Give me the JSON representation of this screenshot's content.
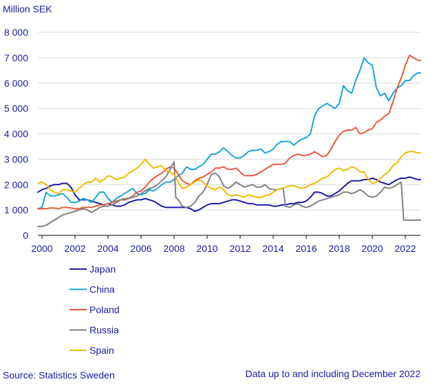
{
  "chart_data": {
    "type": "line",
    "title": "",
    "ylabel": "Million SEK",
    "xlabel": "",
    "ylim": [
      0,
      8000
    ],
    "xlim": [
      1999.75,
      2022.917
    ],
    "y_ticks": [
      0,
      1000,
      2000,
      3000,
      4000,
      5000,
      6000,
      7000,
      8000
    ],
    "y_tick_labels": [
      "0",
      "1 000",
      "2 000",
      "3 000",
      "4 000",
      "5 000",
      "6 000",
      "7 000",
      "8 000"
    ],
    "x_ticks": [
      2000,
      2002,
      2004,
      2006,
      2008,
      2010,
      2012,
      2014,
      2016,
      2018,
      2020,
      2022
    ],
    "x_tick_labels": [
      "2000",
      "2002",
      "2004",
      "2006",
      "2008",
      "2010",
      "2012",
      "2014",
      "2016",
      "2018",
      "2020",
      "2022"
    ],
    "grid": true,
    "legend_position": "bottom-left",
    "series": [
      {
        "name": "Japan",
        "color": "#1a1aa6",
        "x": [
          1999.75,
          2000.0,
          2000.25,
          2000.5,
          2000.75,
          2001.0,
          2001.25,
          2001.5,
          2001.75,
          2002.0,
          2002.25,
          2002.5,
          2002.75,
          2003.0,
          2003.25,
          2003.5,
          2003.75,
          2004.0,
          2004.25,
          2004.5,
          2004.75,
          2005.0,
          2005.25,
          2005.5,
          2005.75,
          2006.0,
          2006.25,
          2006.5,
          2006.75,
          2007.0,
          2007.25,
          2007.5,
          2007.75,
          2008.0,
          2008.25,
          2008.5,
          2008.75,
          2009.0,
          2009.25,
          2009.5,
          2009.75,
          2010.0,
          2010.25,
          2010.5,
          2010.75,
          2011.0,
          2011.25,
          2011.5,
          2011.75,
          2012.0,
          2012.25,
          2012.5,
          2012.75,
          2013.0,
          2013.25,
          2013.5,
          2013.75,
          2014.0,
          2014.25,
          2014.5,
          2014.75,
          2015.0,
          2015.25,
          2015.5,
          2015.75,
          2016.0,
          2016.25,
          2016.5,
          2016.75,
          2017.0,
          2017.25,
          2017.5,
          2017.75,
          2018.0,
          2018.25,
          2018.5,
          2018.75,
          2019.0,
          2019.25,
          2019.5,
          2019.75,
          2020.0,
          2020.25,
          2020.5,
          2020.75,
          2021.0,
          2021.25,
          2021.5,
          2021.75,
          2022.0,
          2022.25,
          2022.5,
          2022.75,
          2022.917
        ],
        "values": [
          1700,
          1800,
          1850,
          1950,
          2000,
          2000,
          2050,
          2050,
          1900,
          1600,
          1400,
          1400,
          1400,
          1350,
          1300,
          1250,
          1200,
          1250,
          1200,
          1150,
          1150,
          1200,
          1300,
          1350,
          1400,
          1400,
          1450,
          1400,
          1350,
          1250,
          1150,
          1100,
          1100,
          1100,
          1100,
          1100,
          1100,
          1050,
          950,
          1000,
          1100,
          1200,
          1250,
          1250,
          1250,
          1300,
          1350,
          1400,
          1400,
          1350,
          1300,
          1250,
          1250,
          1200,
          1200,
          1200,
          1200,
          1150,
          1150,
          1200,
          1200,
          1250,
          1250,
          1300,
          1300,
          1350,
          1500,
          1700,
          1700,
          1650,
          1550,
          1550,
          1650,
          1750,
          1900,
          2050,
          2150,
          2150,
          2150,
          2200,
          2200,
          2250,
          2200,
          2100,
          2050,
          2000,
          2100,
          2200,
          2250,
          2250,
          2300,
          2250,
          2200,
          2200
        ]
      },
      {
        "name": "China",
        "color": "#19a4dc",
        "x": [
          1999.75,
          2000.0,
          2000.25,
          2000.5,
          2000.75,
          2001.0,
          2001.25,
          2001.5,
          2001.75,
          2002.0,
          2002.25,
          2002.5,
          2002.75,
          2003.0,
          2003.25,
          2003.5,
          2003.75,
          2004.0,
          2004.25,
          2004.5,
          2004.75,
          2005.0,
          2005.25,
          2005.5,
          2005.75,
          2006.0,
          2006.25,
          2006.5,
          2006.75,
          2007.0,
          2007.25,
          2007.5,
          2007.75,
          2008.0,
          2008.25,
          2008.5,
          2008.75,
          2009.0,
          2009.25,
          2009.5,
          2009.75,
          2010.0,
          2010.25,
          2010.5,
          2010.75,
          2011.0,
          2011.25,
          2011.5,
          2011.75,
          2012.0,
          2012.25,
          2012.5,
          2012.75,
          2013.0,
          2013.25,
          2013.5,
          2013.75,
          2014.0,
          2014.25,
          2014.5,
          2014.75,
          2015.0,
          2015.25,
          2015.5,
          2015.75,
          2016.0,
          2016.25,
          2016.5,
          2016.75,
          2017.0,
          2017.25,
          2017.5,
          2017.75,
          2018.0,
          2018.25,
          2018.5,
          2018.75,
          2019.0,
          2019.25,
          2019.5,
          2019.75,
          2020.0,
          2020.25,
          2020.5,
          2020.75,
          2021.0,
          2021.25,
          2021.5,
          2021.75,
          2022.0,
          2022.25,
          2022.5,
          2022.75,
          2022.917
        ],
        "values": [
          1050,
          1100,
          1700,
          1550,
          1550,
          1600,
          1650,
          1500,
          1300,
          1300,
          1350,
          1450,
          1400,
          1300,
          1500,
          1700,
          1700,
          1450,
          1300,
          1450,
          1550,
          1650,
          1750,
          1850,
          1650,
          1600,
          1650,
          1800,
          1750,
          1850,
          2000,
          2100,
          2100,
          2200,
          2350,
          2450,
          2700,
          2600,
          2600,
          2700,
          2800,
          3000,
          3200,
          3200,
          3300,
          3450,
          3300,
          3150,
          3050,
          3050,
          3150,
          3300,
          3350,
          3350,
          3400,
          3250,
          3300,
          3400,
          3600,
          3700,
          3700,
          3700,
          3550,
          3700,
          3800,
          3850,
          4000,
          4700,
          5000,
          5100,
          5200,
          5100,
          5000,
          5200,
          5900,
          5700,
          5600,
          6100,
          6500,
          7000,
          6800,
          6700,
          5800,
          5500,
          5600,
          5300,
          5600,
          5800,
          5900,
          6100,
          6100,
          6300,
          6400,
          6400
        ]
      },
      {
        "name": "Poland",
        "color": "#e8583a",
        "x": [
          1999.75,
          2000.0,
          2000.25,
          2000.5,
          2000.75,
          2001.0,
          2001.25,
          2001.5,
          2001.75,
          2002.0,
          2002.25,
          2002.5,
          2002.75,
          2003.0,
          2003.25,
          2003.5,
          2003.75,
          2004.0,
          2004.25,
          2004.5,
          2004.75,
          2005.0,
          2005.25,
          2005.5,
          2005.75,
          2006.0,
          2006.25,
          2006.5,
          2006.75,
          2007.0,
          2007.25,
          2007.5,
          2007.75,
          2008.0,
          2008.25,
          2008.5,
          2008.75,
          2009.0,
          2009.25,
          2009.5,
          2009.75,
          2010.0,
          2010.25,
          2010.5,
          2010.75,
          2011.0,
          2011.25,
          2011.5,
          2011.75,
          2012.0,
          2012.25,
          2012.5,
          2012.75,
          2013.0,
          2013.25,
          2013.5,
          2013.75,
          2014.0,
          2014.25,
          2014.5,
          2014.75,
          2015.0,
          2015.25,
          2015.5,
          2015.75,
          2016.0,
          2016.25,
          2016.5,
          2016.75,
          2017.0,
          2017.25,
          2017.5,
          2017.75,
          2018.0,
          2018.25,
          2018.5,
          2018.75,
          2019.0,
          2019.25,
          2019.5,
          2019.75,
          2020.0,
          2020.25,
          2020.5,
          2020.75,
          2021.0,
          2021.25,
          2021.5,
          2021.75,
          2022.0,
          2022.25,
          2022.5,
          2022.75,
          2022.917
        ],
        "values": [
          1050,
          1050,
          1050,
          1080,
          1080,
          1050,
          1100,
          1100,
          1080,
          1050,
          1050,
          1100,
          1100,
          1100,
          1150,
          1200,
          1200,
          1250,
          1300,
          1350,
          1400,
          1400,
          1450,
          1550,
          1700,
          1750,
          1900,
          2100,
          2250,
          2350,
          2450,
          2600,
          2700,
          2650,
          2400,
          2150,
          2050,
          2000,
          2150,
          2250,
          2300,
          2400,
          2500,
          2650,
          2650,
          2700,
          2600,
          2600,
          2650,
          2500,
          2350,
          2350,
          2350,
          2400,
          2500,
          2600,
          2700,
          2800,
          2800,
          2800,
          2850,
          3050,
          3150,
          3200,
          3150,
          3150,
          3200,
          3300,
          3200,
          3100,
          3150,
          3400,
          3700,
          3950,
          4100,
          4150,
          4150,
          4250,
          4000,
          4050,
          4150,
          4200,
          4450,
          4550,
          4700,
          4800,
          5250,
          5800,
          6200,
          6700,
          7100,
          7000,
          6900,
          6900
        ]
      },
      {
        "name": "Russia",
        "color": "#808080",
        "x": [
          1999.75,
          2000.0,
          2000.25,
          2000.5,
          2000.75,
          2001.0,
          2001.25,
          2001.5,
          2001.75,
          2002.0,
          2002.25,
          2002.5,
          2002.75,
          2003.0,
          2003.25,
          2003.5,
          2003.75,
          2004.0,
          2004.25,
          2004.5,
          2004.75,
          2005.0,
          2005.25,
          2005.5,
          2005.75,
          2006.0,
          2006.25,
          2006.5,
          2006.75,
          2007.0,
          2007.25,
          2007.5,
          2007.75,
          2008.0,
          2008.1,
          2008.25,
          2008.5,
          2008.75,
          2009.0,
          2009.25,
          2009.5,
          2009.75,
          2010.0,
          2010.25,
          2010.5,
          2010.75,
          2011.0,
          2011.25,
          2011.5,
          2011.75,
          2012.0,
          2012.25,
          2012.5,
          2012.75,
          2013.0,
          2013.25,
          2013.5,
          2013.75,
          2014.0,
          2014.25,
          2014.5,
          2014.6,
          2014.75,
          2015.0,
          2015.25,
          2015.5,
          2015.75,
          2016.0,
          2016.25,
          2016.5,
          2016.75,
          2017.0,
          2017.25,
          2017.5,
          2017.75,
          2018.0,
          2018.25,
          2018.5,
          2018.75,
          2019.0,
          2019.25,
          2019.5,
          2019.75,
          2020.0,
          2020.25,
          2020.5,
          2020.75,
          2021.0,
          2021.25,
          2021.5,
          2021.75,
          2021.9,
          2022.0,
          2022.25,
          2022.5,
          2022.75,
          2022.917
        ],
        "values": [
          350,
          350,
          400,
          500,
          600,
          700,
          800,
          850,
          900,
          950,
          1000,
          1050,
          1000,
          900,
          1000,
          1100,
          1150,
          1150,
          1200,
          1300,
          1400,
          1450,
          1450,
          1500,
          1550,
          1650,
          1750,
          1850,
          1900,
          2000,
          2150,
          2300,
          2600,
          2900,
          1500,
          1400,
          1150,
          1100,
          1150,
          1300,
          1550,
          1700,
          2000,
          2400,
          2450,
          2300,
          1950,
          1850,
          1950,
          2100,
          2000,
          1900,
          1950,
          2000,
          1900,
          1900,
          2000,
          1850,
          1800,
          1800,
          1850,
          1850,
          1150,
          1100,
          1200,
          1250,
          1150,
          1100,
          1150,
          1250,
          1350,
          1400,
          1450,
          1500,
          1550,
          1600,
          1700,
          1700,
          1650,
          1700,
          1800,
          1700,
          1550,
          1500,
          1550,
          1700,
          1900,
          1850,
          1900,
          2000,
          2100,
          600,
          600,
          600,
          600,
          600,
          600
        ]
      },
      {
        "name": "Spain",
        "color": "#f2b900",
        "x": [
          1999.75,
          2000.0,
          2000.25,
          2000.5,
          2000.75,
          2001.0,
          2001.25,
          2001.5,
          2001.75,
          2002.0,
          2002.25,
          2002.5,
          2002.75,
          2003.0,
          2003.25,
          2003.5,
          2003.75,
          2004.0,
          2004.25,
          2004.5,
          2004.75,
          2005.0,
          2005.25,
          2005.5,
          2005.75,
          2006.0,
          2006.25,
          2006.5,
          2006.75,
          2007.0,
          2007.25,
          2007.5,
          2007.75,
          2008.0,
          2008.25,
          2008.5,
          2008.75,
          2009.0,
          2009.25,
          2009.5,
          2009.75,
          2010.0,
          2010.25,
          2010.5,
          2010.75,
          2011.0,
          2011.25,
          2011.5,
          2011.75,
          2012.0,
          2012.25,
          2012.5,
          2012.75,
          2013.0,
          2013.25,
          2013.5,
          2013.75,
          2014.0,
          2014.25,
          2014.5,
          2014.75,
          2015.0,
          2015.25,
          2015.5,
          2015.75,
          2016.0,
          2016.25,
          2016.5,
          2016.75,
          2017.0,
          2017.25,
          2017.5,
          2017.75,
          2018.0,
          2018.25,
          2018.5,
          2018.75,
          2019.0,
          2019.25,
          2019.5,
          2019.75,
          2020.0,
          2020.25,
          2020.5,
          2020.75,
          2021.0,
          2021.25,
          2021.5,
          2021.75,
          2022.0,
          2022.25,
          2022.5,
          2022.75,
          2022.917
        ],
        "values": [
          2050,
          2100,
          2000,
          1800,
          1700,
          1650,
          1800,
          1800,
          1750,
          1700,
          1850,
          2000,
          2100,
          2100,
          2250,
          2100,
          2200,
          2350,
          2300,
          2200,
          2250,
          2300,
          2450,
          2550,
          2650,
          2800,
          3000,
          2800,
          2650,
          2700,
          2750,
          2550,
          2500,
          2400,
          2100,
          1850,
          1900,
          2000,
          2100,
          2200,
          2100,
          1950,
          1850,
          1800,
          1900,
          1800,
          1600,
          1550,
          1600,
          1550,
          1500,
          1600,
          1550,
          1500,
          1500,
          1550,
          1600,
          1700,
          1800,
          1850,
          1900,
          1950,
          1950,
          1900,
          1850,
          1900,
          2000,
          2050,
          2150,
          2250,
          2300,
          2450,
          2600,
          2650,
          2550,
          2600,
          2700,
          2650,
          2500,
          2500,
          2200,
          2050,
          2100,
          2250,
          2400,
          2500,
          2750,
          2850,
          3100,
          3250,
          3300,
          3300,
          3250,
          3250
        ]
      }
    ]
  },
  "footer": {
    "source": "Source: Statistics Sweden",
    "note": "Data up to and including December 2022"
  }
}
